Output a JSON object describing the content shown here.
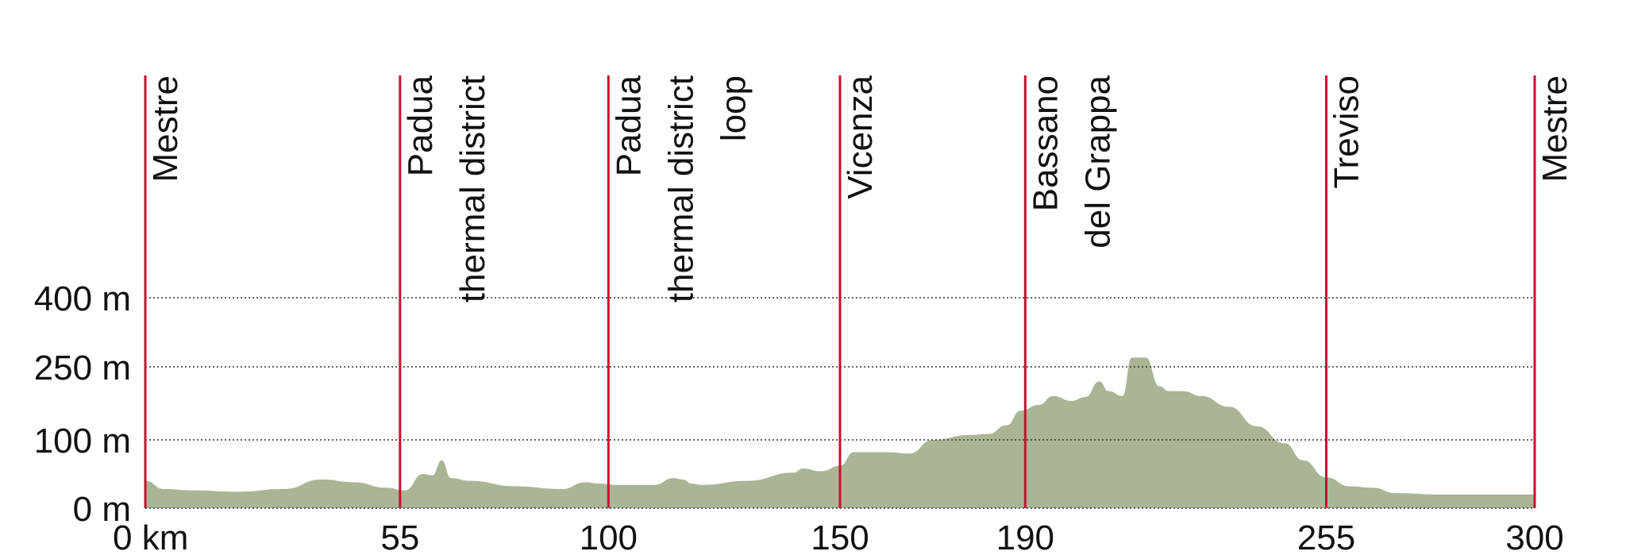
{
  "chart_data": {
    "type": "area",
    "title": "",
    "xlabel": "",
    "ylabel": "",
    "x_unit": "km",
    "y_unit": "m",
    "xlim": [
      0,
      300
    ],
    "x_ticks": [
      {
        "value": 0,
        "label": "0 km"
      },
      {
        "value": 55,
        "label": "55"
      },
      {
        "value": 100,
        "label": "100"
      },
      {
        "value": 150,
        "label": "150"
      },
      {
        "value": 190,
        "label": "190"
      },
      {
        "value": 255,
        "label": "255"
      },
      {
        "value": 300,
        "label": "300"
      }
    ],
    "y_ticks": [
      {
        "value": 0,
        "label": "0 m"
      },
      {
        "value": 100,
        "label": "100 m"
      },
      {
        "value": 250,
        "label": "250 m"
      },
      {
        "value": 400,
        "label": "400 m"
      }
    ],
    "grid": "dotted horizontal at 100, 250, 400 m",
    "markers": [
      {
        "km": 0,
        "lines": [
          "Mestre"
        ]
      },
      {
        "km": 55,
        "lines": [
          "Padua",
          "thermal district"
        ]
      },
      {
        "km": 100,
        "lines": [
          "Padua",
          "thermal district",
          "loop"
        ]
      },
      {
        "km": 150,
        "lines": [
          "Vicenza"
        ]
      },
      {
        "km": 190,
        "lines": [
          "Bassano",
          "del Grappa"
        ]
      },
      {
        "km": 255,
        "lines": [
          "Treviso"
        ]
      },
      {
        "km": 300,
        "lines": [
          "Mestre"
        ]
      }
    ],
    "series": [
      {
        "values_km": [
          0,
          4,
          10,
          20,
          30,
          38,
          45,
          52,
          56,
          60,
          62,
          64,
          66,
          70,
          80,
          90,
          95,
          98,
          102,
          110,
          114,
          116,
          118,
          120,
          130,
          140,
          142,
          146,
          150,
          153,
          160,
          165,
          170,
          178,
          182,
          186,
          189,
          193,
          196,
          200,
          203,
          206,
          208,
          211,
          213,
          216,
          219,
          221,
          224,
          228,
          234,
          240,
          246,
          250,
          255,
          260,
          265,
          270,
          280,
          290,
          300
        ],
        "values_m": [
          40,
          28,
          26,
          24,
          28,
          42,
          38,
          30,
          26,
          50,
          48,
          70,
          44,
          40,
          32,
          28,
          38,
          36,
          34,
          34,
          44,
          42,
          36,
          34,
          40,
          52,
          58,
          54,
          62,
          82,
          82,
          80,
          100,
          110,
          112,
          130,
          160,
          172,
          190,
          180,
          188,
          220,
          200,
          190,
          270,
          270,
          210,
          200,
          200,
          190,
          168,
          128,
          95,
          70,
          45,
          32,
          30,
          22,
          20,
          20,
          20
        ]
      }
    ],
    "colors": {
      "area_fill": "#a9b594",
      "marker_line": "#c8102e",
      "grid_line": "#333333",
      "text": "#111111"
    }
  }
}
